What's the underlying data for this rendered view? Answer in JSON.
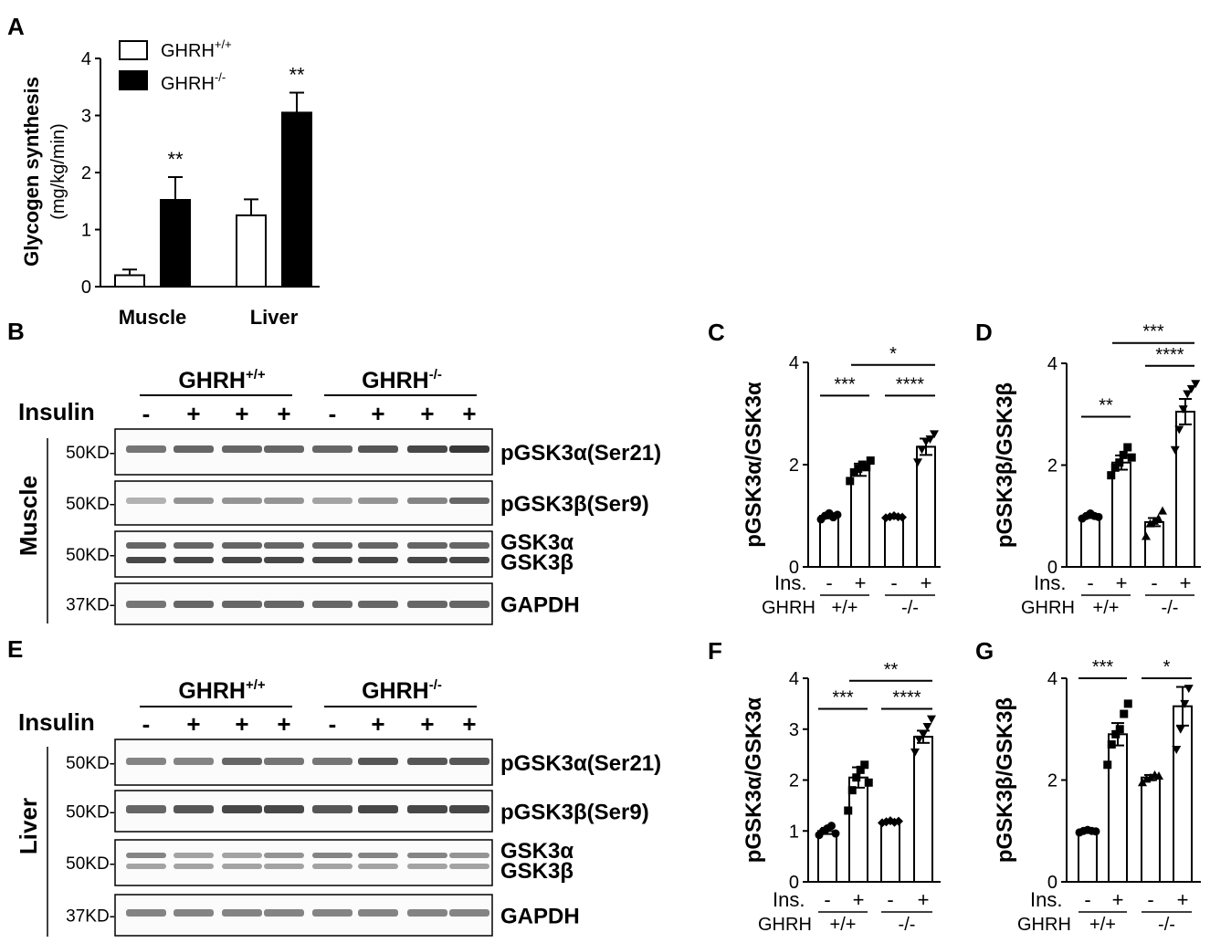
{
  "panels": {
    "A": {
      "letter": "A",
      "ylabel_line1": "Glycogen synthesis",
      "ylabel_line2": "(mg/kg/min)",
      "legend": [
        "GHRH",
        "GHRH"
      ],
      "legend_sup": [
        "+/+",
        "-/-"
      ],
      "categories": [
        "Muscle",
        "Liver"
      ],
      "stars": [
        "**",
        "**"
      ]
    },
    "B": {
      "letter": "B",
      "tissue": "Muscle",
      "group_labels": [
        "GHRH",
        "GHRH"
      ],
      "group_sups": [
        "+/+",
        "-/-"
      ],
      "insulin_label": "Insulin",
      "insulin_signs": [
        "-",
        "+",
        "+",
        "+",
        "-",
        "+",
        "+",
        "+"
      ],
      "blots": [
        {
          "mw": "50KD-",
          "labels": [
            "pGSK3α(Ser21)"
          ]
        },
        {
          "mw": "50KD-",
          "labels": [
            "pGSK3β(Ser9)"
          ]
        },
        {
          "mw": "50KD-",
          "labels": [
            "GSK3α",
            "GSK3β"
          ]
        },
        {
          "mw": "37KD-",
          "labels": [
            "GAPDH"
          ]
        }
      ]
    },
    "E": {
      "letter": "E",
      "tissue": "Liver",
      "group_labels": [
        "GHRH",
        "GHRH"
      ],
      "group_sups": [
        "+/+",
        "-/-"
      ],
      "insulin_label": "Insulin",
      "insulin_signs": [
        "-",
        "+",
        "+",
        "+",
        "-",
        "+",
        "+",
        "+"
      ],
      "blots": [
        {
          "mw": "50KD-",
          "labels": [
            "pGSK3α(Ser21)"
          ]
        },
        {
          "mw": "50KD-",
          "labels": [
            "pGSK3β(Ser9)"
          ]
        },
        {
          "mw": "50KD-",
          "labels": [
            "GSK3α",
            "GSK3β"
          ]
        },
        {
          "mw": "37KD-",
          "labels": [
            "GAPDH"
          ]
        }
      ]
    },
    "quant_common": {
      "ins_label": "Ins.",
      "ghrh_label": "GHRH",
      "ins_signs": [
        "-",
        "+",
        "-",
        "+"
      ],
      "genotypes": [
        "+/+",
        "-/-"
      ]
    }
  },
  "chart_data": [
    {
      "panel": "A",
      "type": "bar",
      "categories": [
        "Muscle",
        "Liver"
      ],
      "series": [
        {
          "name": "GHRH+/+",
          "values": [
            0.2,
            1.25
          ],
          "errors": [
            0.1,
            0.28
          ],
          "fill": "#ffffff"
        },
        {
          "name": "GHRH-/-",
          "values": [
            1.52,
            3.05
          ],
          "errors": [
            0.4,
            0.35
          ],
          "fill": "#000000"
        }
      ],
      "ylabel": "Glycogen synthesis (mg/kg/min)",
      "ylim": [
        0,
        4
      ],
      "yticks": [
        "0",
        "1",
        "2",
        "3",
        "4"
      ],
      "annotations": [
        "**",
        "**"
      ]
    },
    {
      "panel": "C",
      "type": "bar",
      "ylabel": "pGSK3α/GSK3α",
      "ylim": [
        0,
        4
      ],
      "yticks": [
        "0",
        "2",
        "4"
      ],
      "categories": [
        "GHRH+/+ Ins -",
        "GHRH+/+ Ins +",
        "GHRH-/- Ins -",
        "GHRH-/- Ins +"
      ],
      "values": [
        1.0,
        1.9,
        0.98,
        2.35
      ],
      "errors": [
        0.05,
        0.12,
        0.03,
        0.16
      ],
      "points": [
        [
          0.93,
          1.0,
          1.05,
          0.97,
          1.02
        ],
        [
          1.68,
          1.85,
          1.92,
          2.0,
          1.95,
          2.08
        ],
        [
          0.96,
          0.98,
          1.0,
          0.98,
          0.97
        ],
        [
          2.05,
          2.3,
          2.45,
          2.5,
          2.6
        ]
      ],
      "markers": [
        "circle",
        "square",
        "diamond",
        "triangle-down"
      ],
      "comparisons": [
        {
          "from": 0,
          "to": 1,
          "label": "***",
          "level": 3.35
        },
        {
          "from": 2,
          "to": 3,
          "label": "****",
          "level": 3.35
        },
        {
          "from": 1,
          "to": 3,
          "label": "*",
          "level": 3.95
        }
      ]
    },
    {
      "panel": "D",
      "type": "bar",
      "ylabel": "pGSK3β/GSK3β",
      "ylim": [
        0,
        4
      ],
      "yticks": [
        "0",
        "2",
        "4"
      ],
      "categories": [
        "GHRH+/+ Ins -",
        "GHRH+/+ Ins +",
        "GHRH-/- Ins -",
        "GHRH-/- Ins +"
      ],
      "values": [
        1.0,
        2.05,
        0.88,
        3.05
      ],
      "errors": [
        0.04,
        0.14,
        0.08,
        0.25
      ],
      "points": [
        [
          0.95,
          1.0,
          1.05,
          1.0,
          0.98
        ],
        [
          1.8,
          1.95,
          2.05,
          2.2,
          2.35,
          2.15
        ],
        [
          0.6,
          0.85,
          0.9,
          0.95,
          1.1
        ],
        [
          2.3,
          2.7,
          3.1,
          3.4,
          3.5,
          3.6
        ]
      ],
      "markers": [
        "circle",
        "square",
        "triangle-up",
        "triangle-down"
      ],
      "comparisons": [
        {
          "from": 0,
          "to": 1,
          "label": "**",
          "level": 2.95
        },
        {
          "from": 2,
          "to": 3,
          "label": "****",
          "level": 3.95
        },
        {
          "from": 1,
          "to": 3,
          "label": "***",
          "level": 4.4
        }
      ]
    },
    {
      "panel": "F",
      "type": "bar",
      "ylabel": "pGSK3α/GSK3α",
      "ylim": [
        0,
        4
      ],
      "yticks": [
        "0",
        "1",
        "2",
        "3",
        "4"
      ],
      "categories": [
        "GHRH+/+ Ins -",
        "GHRH+/+ Ins +",
        "GHRH-/- Ins -",
        "GHRH-/- Ins +"
      ],
      "values": [
        1.0,
        2.05,
        1.18,
        2.85
      ],
      "errors": [
        0.06,
        0.2,
        0.02,
        0.12
      ],
      "points": [
        [
          0.92,
          1.0,
          1.05,
          1.1,
          0.95
        ],
        [
          1.4,
          1.8,
          2.05,
          2.2,
          2.3,
          1.95
        ],
        [
          1.16,
          1.18,
          1.2,
          1.17,
          1.19
        ],
        [
          2.55,
          2.8,
          2.9,
          3.05,
          3.2
        ]
      ],
      "markers": [
        "circle",
        "square",
        "diamond",
        "triangle-down"
      ],
      "comparisons": [
        {
          "from": 0,
          "to": 1,
          "label": "***",
          "level": 3.4
        },
        {
          "from": 2,
          "to": 3,
          "label": "****",
          "level": 3.4
        },
        {
          "from": 1,
          "to": 3,
          "label": "**",
          "level": 3.95
        }
      ]
    },
    {
      "panel": "G",
      "type": "bar",
      "ylabel": "pGSK3β/GSK3β",
      "ylim": [
        0,
        4
      ],
      "yticks": [
        "0",
        "2",
        "4"
      ],
      "categories": [
        "GHRH+/+ Ins -",
        "GHRH+/+ Ins +",
        "GHRH-/- Ins -",
        "GHRH-/- Ins +"
      ],
      "values": [
        1.0,
        2.9,
        2.05,
        3.45
      ],
      "errors": [
        0.03,
        0.22,
        0.05,
        0.38
      ],
      "points": [
        [
          0.97,
          1.0,
          1.02,
          1.0,
          0.99
        ],
        [
          2.3,
          2.7,
          2.9,
          3.0,
          3.3,
          3.5
        ],
        [
          1.95,
          2.02,
          2.05,
          2.1,
          2.08
        ],
        [
          2.6,
          3.0,
          3.5,
          3.8
        ]
      ],
      "markers": [
        "circle",
        "square",
        "triangle-up",
        "triangle-down"
      ],
      "comparisons": [
        {
          "from": 0,
          "to": 1,
          "label": "***",
          "level": 4.0
        },
        {
          "from": 2,
          "to": 3,
          "label": "*",
          "level": 4.0
        }
      ]
    }
  ]
}
